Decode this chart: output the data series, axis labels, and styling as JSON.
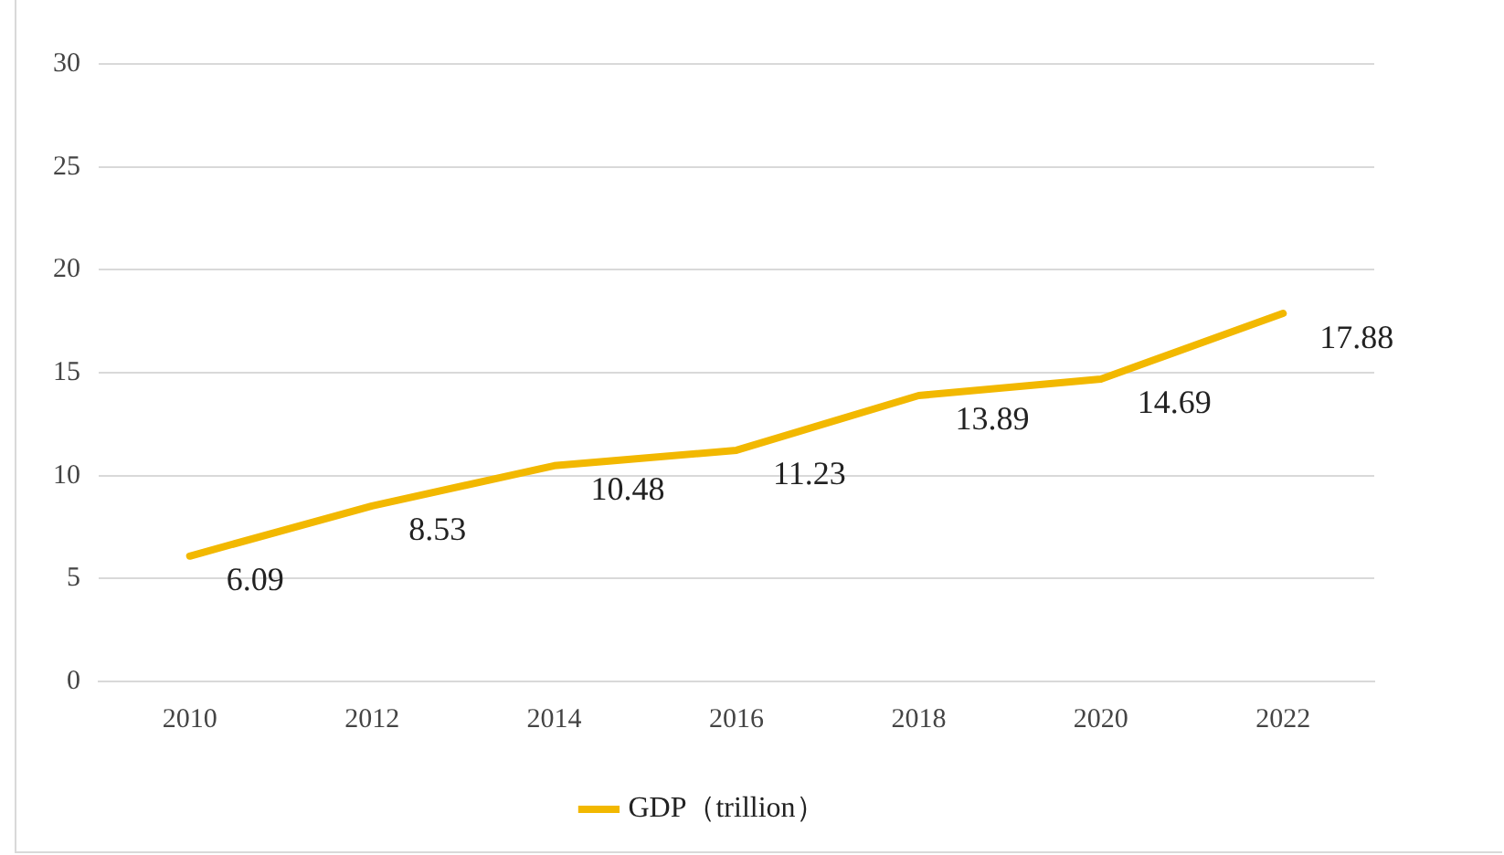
{
  "chart_data": {
    "type": "line",
    "categories": [
      "2010",
      "2012",
      "2014",
      "2016",
      "2018",
      "2020",
      "2022"
    ],
    "series": [
      {
        "name": "GDP（trillion）",
        "color": "#f2b800",
        "values": [
          6.09,
          8.53,
          10.48,
          11.23,
          13.89,
          14.69,
          17.88
        ]
      }
    ],
    "ylim": [
      0,
      30
    ],
    "yticks": [
      0,
      5,
      10,
      15,
      20,
      25,
      30
    ],
    "grid": "y",
    "legend": "bottom",
    "marker": "none",
    "line_style": "solid",
    "data_labels": true
  }
}
